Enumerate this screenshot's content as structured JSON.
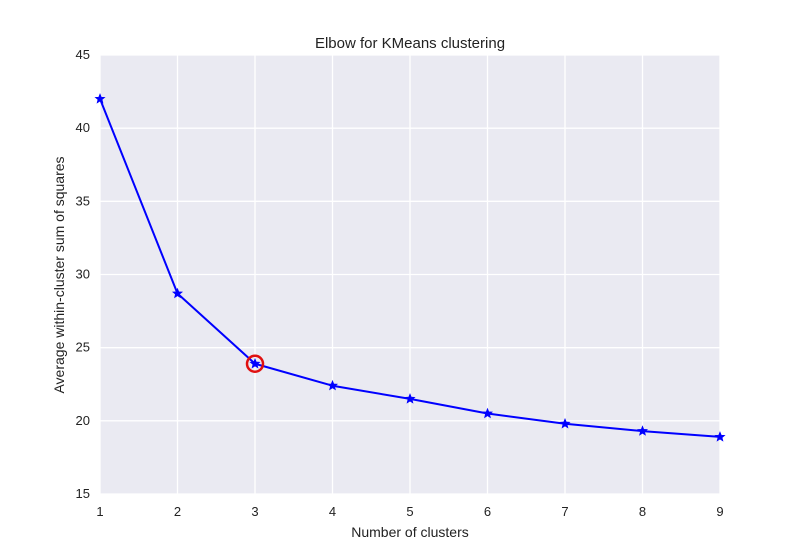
{
  "chart_data": {
    "type": "line",
    "title": "Elbow for KMeans clustering",
    "xlabel": "Number of clusters",
    "ylabel": "Average within-cluster sum of squares",
    "xlim": [
      1,
      9
    ],
    "ylim": [
      15,
      45
    ],
    "x_ticks": [
      "1",
      "2",
      "3",
      "4",
      "5",
      "6",
      "7",
      "8",
      "9"
    ],
    "y_ticks": [
      "15",
      "20",
      "25",
      "30",
      "35",
      "40",
      "45"
    ],
    "grid": true,
    "series": [
      {
        "x": [
          1,
          2,
          3,
          4,
          5,
          6,
          7,
          8,
          9
        ],
        "values": [
          42.0,
          28.7,
          23.9,
          22.4,
          21.5,
          20.5,
          19.8,
          19.3,
          18.9
        ],
        "color": "#0000ff",
        "marker": "star"
      }
    ],
    "highlight": {
      "x": 3,
      "y": 23.9,
      "marker": "circle",
      "color": "#e01010"
    },
    "colors": {
      "plot_background": "#eaeaf2",
      "grid": "#ffffff",
      "line": "#0000ff",
      "highlight": "#e01010"
    }
  }
}
